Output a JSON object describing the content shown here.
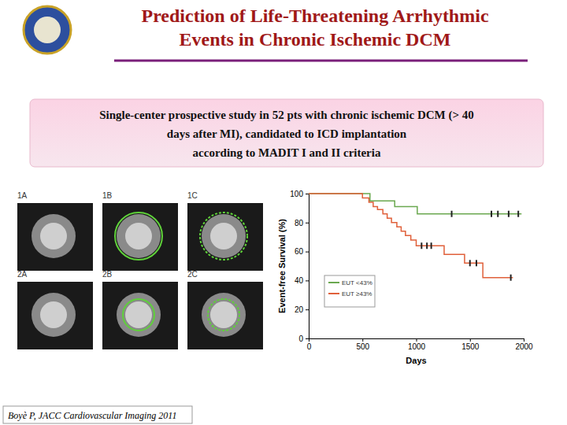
{
  "slide": {
    "title_lines": [
      "Prediction of Life-Threatening Arrhythmic",
      "Events in Chronic Ischemic DCM"
    ],
    "box_lines": [
      "Single-center prospective study in 52 pts with chronic ischemic DCM (> 40",
      "days after MI), candidated to ICD implantation",
      "according to MADIT I and II criteria"
    ],
    "image_labels": [
      "1A",
      "1B",
      "1C",
      "2A",
      "2B",
      "2C"
    ],
    "citation": "Boyè P, JACC Cardiovascular Imaging 2011"
  },
  "chart_data": {
    "type": "step",
    "x_label": "Days",
    "y_label": "Event-free Survival (%)",
    "xlim": [
      0,
      2000
    ],
    "xticks": [
      0,
      500,
      1000,
      1500,
      2000
    ],
    "ylim": [
      0,
      100
    ],
    "yticks": [
      0,
      20,
      40,
      60,
      80,
      100
    ],
    "legend": "lower-left",
    "series": [
      {
        "name": "EUT <43%",
        "color": "#6aa84f",
        "marker": "tick",
        "x": [
          0,
          570,
          800,
          1010,
          1980
        ],
        "values": [
          100,
          95,
          91,
          86,
          86
        ],
        "censored": [
          1330,
          1700,
          1760,
          1860,
          1950
        ]
      },
      {
        "name": "EUT ≥43%",
        "color": "#e0603a",
        "marker": "tick",
        "x": [
          0,
          500,
          560,
          600,
          640,
          690,
          730,
          770,
          820,
          860,
          900,
          950,
          1000,
          1260,
          1450,
          1620,
          1900
        ],
        "values": [
          100,
          97,
          94,
          91,
          89,
          86,
          83,
          80,
          77,
          74,
          71,
          68,
          64,
          58,
          52,
          42,
          42
        ],
        "censored": [
          1050,
          1100,
          1140,
          1500,
          1560,
          1880
        ]
      }
    ]
  }
}
